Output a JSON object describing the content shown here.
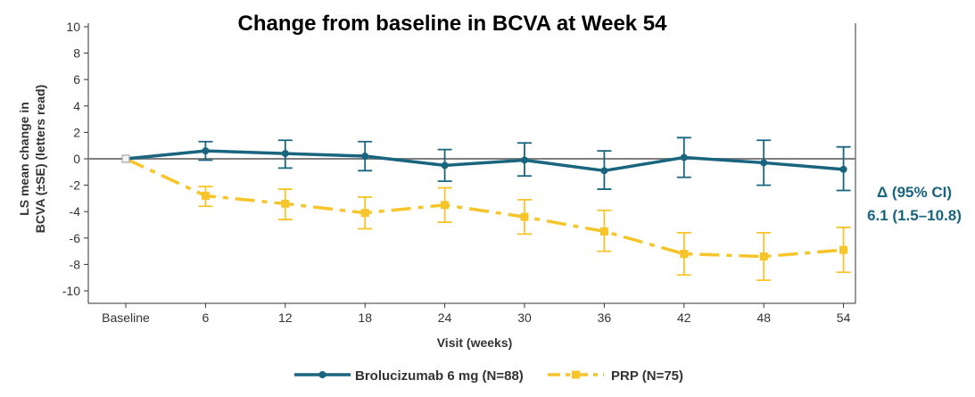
{
  "chart_data": {
    "type": "line",
    "title": "Change from baseline in BCVA at Week 54",
    "xlabel": "Visit (weeks)",
    "ylabel_lines": [
      "LS mean change in",
      "BCVA (±SE) (letters read)"
    ],
    "categories": [
      "Baseline",
      "6",
      "12",
      "18",
      "24",
      "30",
      "36",
      "42",
      "48",
      "54"
    ],
    "ylim": [
      -10,
      10
    ],
    "yticks": [
      10,
      8,
      6,
      4,
      2,
      0,
      -2,
      -4,
      -6,
      -8,
      -10
    ],
    "reference_line_y": 0,
    "grid": false,
    "legend_position": "bottom",
    "series": [
      {
        "name": "Brolucizumab 6 mg (N=88)",
        "color": "#19647e",
        "line_style": "solid",
        "marker": "circle",
        "values": [
          0,
          0.6,
          0.4,
          0.2,
          -0.5,
          -0.1,
          -0.9,
          0.1,
          -0.3,
          -0.8
        ],
        "se_low": [
          null,
          -0.1,
          -0.7,
          -0.9,
          -1.7,
          -1.3,
          -2.3,
          -1.4,
          -2.0,
          -2.4
        ],
        "se_high": [
          null,
          1.3,
          1.4,
          1.3,
          0.7,
          1.2,
          0.6,
          1.6,
          1.4,
          0.9
        ]
      },
      {
        "name": "PRP (N=75)",
        "color": "#f7c42a",
        "line_style": "dashdot",
        "marker": "square",
        "values": [
          0,
          -2.8,
          -3.4,
          -4.1,
          -3.5,
          -4.4,
          -5.5,
          -7.2,
          -7.4,
          -6.9
        ],
        "se_low": [
          null,
          -3.6,
          -4.6,
          -5.3,
          -4.8,
          -5.7,
          -7.0,
          -8.8,
          -9.2,
          -8.6
        ],
        "se_high": [
          null,
          -2.1,
          -2.3,
          -2.9,
          -2.2,
          -3.1,
          -3.9,
          -5.6,
          -5.6,
          -5.2
        ]
      }
    ],
    "annotation": {
      "lines": [
        "Δ (95% CI)",
        "6.1 (1.5–10.8)"
      ],
      "color": "#19647e"
    }
  }
}
